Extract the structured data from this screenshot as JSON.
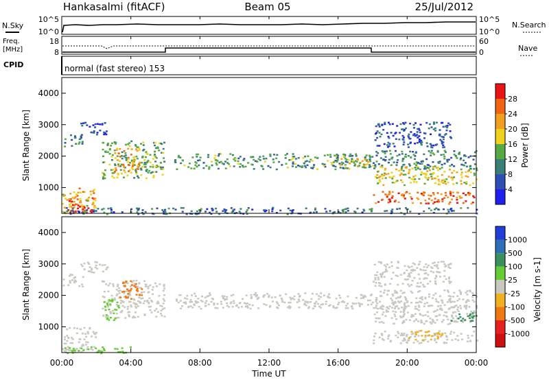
{
  "header": {
    "station": "Hankasalmi (fitACF)",
    "beam": "Beam 05",
    "date": "25/Jul/2012"
  },
  "panels": {
    "nsky": {
      "label": "N.Sky",
      "right_label": "N.Search",
      "tick_top": "10^5",
      "tick_bottom": "10^0",
      "rtick_top": "10^5",
      "rtick_bottom": "10^0"
    },
    "freq": {
      "label_line1": "Freq.",
      "label_line2": "[MHz]",
      "right_label": "Nave",
      "tick_top": "18",
      "tick_bottom": "8",
      "rtick_top": "60",
      "rtick_bottom": "0"
    },
    "cpid": {
      "label": "CPID",
      "text": "normal (fast stereo) 153"
    }
  },
  "axes": {
    "ylabel": "Slant Range [km]",
    "xlabel": "Time UT",
    "yticks": [
      "1000",
      "2000",
      "3000",
      "4000"
    ],
    "xticks": [
      "00:00",
      "04:00",
      "08:00",
      "12:00",
      "16:00",
      "20:00",
      "00:00"
    ]
  },
  "colorbars": {
    "power": {
      "label": "Power [dB]",
      "ticks": [
        "4",
        "8",
        "12",
        "16",
        "20",
        "24",
        "28"
      ],
      "colors": [
        "#1f1ff0",
        "#2e4fb4",
        "#3c7f78",
        "#55aa44",
        "#f0d21e",
        "#f0a01e",
        "#f06414",
        "#e81414"
      ]
    },
    "velocity": {
      "label": "Velocity [m s-1]",
      "ticks": [
        "1000",
        "500",
        "100",
        "25",
        "-25",
        "-100",
        "-500",
        "-1000"
      ],
      "colors": [
        "#1f3fd8",
        "#2f6fb8",
        "#3c9060",
        "#66cc33",
        "#c8c8c0",
        "#f0b020",
        "#f07810",
        "#e82020",
        "#cc1010"
      ]
    }
  },
  "chart_data": [
    {
      "type": "heatmap",
      "name": "power",
      "x_unit": "hours UT",
      "y_unit": "km",
      "xlim": [
        0,
        24
      ],
      "ylim": [
        180,
        4500
      ],
      "regions": [
        {
          "x": [
            0.0,
            2.0
          ],
          "y": [
            200,
            1000
          ],
          "value": 20
        },
        {
          "x": [
            0.2,
            1.8
          ],
          "y": [
            200,
            700
          ],
          "value": 28
        },
        {
          "x": [
            0.0,
            1.2
          ],
          "y": [
            2300,
            2700
          ],
          "value": 10
        },
        {
          "x": [
            1.0,
            2.6
          ],
          "y": [
            2700,
            3100
          ],
          "value": 6
        },
        {
          "x": [
            2.3,
            5.9
          ],
          "y": [
            1300,
            2500
          ],
          "value": 14
        },
        {
          "x": [
            3.0,
            4.5
          ],
          "y": [
            1500,
            2300
          ],
          "value": 22
        },
        {
          "x": [
            6.5,
            18.0
          ],
          "y": [
            1600,
            2100
          ],
          "value": 12
        },
        {
          "x": [
            16.0,
            18.0
          ],
          "y": [
            1700,
            2000
          ],
          "value": 18
        },
        {
          "x": [
            18.0,
            24.0
          ],
          "y": [
            500,
            900
          ],
          "value": 26
        },
        {
          "x": [
            18.0,
            24.0
          ],
          "y": [
            1100,
            1700
          ],
          "value": 18
        },
        {
          "x": [
            18.0,
            24.0
          ],
          "y": [
            1600,
            2200
          ],
          "value": 10
        },
        {
          "x": [
            18.0,
            22.5
          ],
          "y": [
            2300,
            3100
          ],
          "value": 6
        },
        {
          "x": [
            0.0,
            24.0
          ],
          "y": [
            180,
            380
          ],
          "value": 8
        }
      ]
    },
    {
      "type": "heatmap",
      "name": "velocity",
      "x_unit": "hours UT",
      "y_unit": "km",
      "xlim": [
        0,
        24
      ],
      "ylim": [
        180,
        4500
      ],
      "regions": [
        {
          "x": [
            0.0,
            2.0
          ],
          "y": [
            200,
            1000
          ],
          "value": 0
        },
        {
          "x": [
            0.0,
            1.2
          ],
          "y": [
            2300,
            2700
          ],
          "value": 0
        },
        {
          "x": [
            1.0,
            2.6
          ],
          "y": [
            2700,
            3100
          ],
          "value": 0
        },
        {
          "x": [
            2.3,
            5.9
          ],
          "y": [
            1300,
            2500
          ],
          "value": 0
        },
        {
          "x": [
            2.4,
            3.3
          ],
          "y": [
            1200,
            1900
          ],
          "value": 60
        },
        {
          "x": [
            3.3,
            4.6
          ],
          "y": [
            1900,
            2500
          ],
          "value": -300
        },
        {
          "x": [
            6.5,
            18.0
          ],
          "y": [
            1600,
            2100
          ],
          "value": 0
        },
        {
          "x": [
            18.0,
            24.0
          ],
          "y": [
            500,
            900
          ],
          "value": 0
        },
        {
          "x": [
            18.0,
            24.0
          ],
          "y": [
            1100,
            1700
          ],
          "value": 0
        },
        {
          "x": [
            18.0,
            24.0
          ],
          "y": [
            1600,
            2200
          ],
          "value": 0
        },
        {
          "x": [
            18.0,
            22.5
          ],
          "y": [
            2300,
            3100
          ],
          "value": 0
        },
        {
          "x": [
            22.5,
            24.0
          ],
          "y": [
            1200,
            1500
          ],
          "value": 200
        },
        {
          "x": [
            20.0,
            22.0
          ],
          "y": [
            600,
            900
          ],
          "value": -60
        },
        {
          "x": [
            0.0,
            4.0
          ],
          "y": [
            180,
            380
          ],
          "value": 60
        }
      ]
    }
  ]
}
